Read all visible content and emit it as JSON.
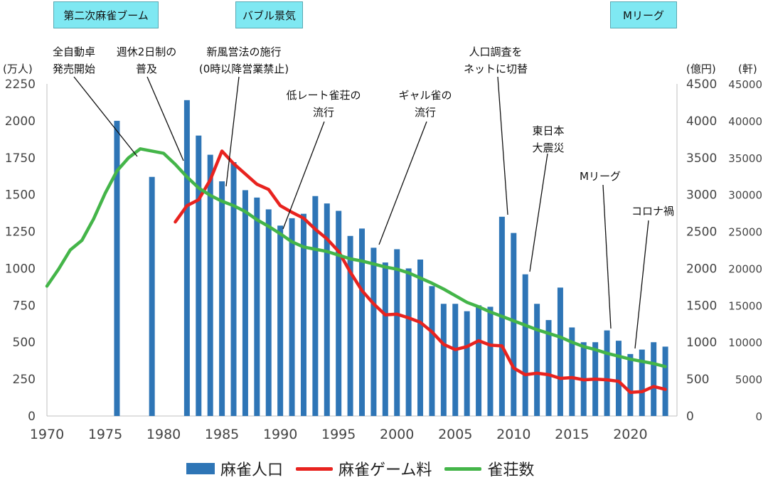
{
  "eras": [
    {
      "label": "第二次麻雀ブーム"
    },
    {
      "label": "バブル景気"
    },
    {
      "label": "Mリーグ"
    }
  ],
  "axis_units": {
    "left": "(万人)",
    "right1": "(億円)",
    "right2": "(軒)"
  },
  "colors": {
    "bars": "#2e75b6",
    "game_fee": "#e8231f",
    "parlors": "#44b549",
    "era_box": "#7fe8f2"
  },
  "chart_data": {
    "type": "bar+line",
    "x_ticks": [
      1970,
      1975,
      1980,
      1985,
      1990,
      1995,
      2000,
      2005,
      2010,
      2015,
      2020
    ],
    "y_left": {
      "unit": "(万人)",
      "ticks": [
        0,
        250,
        500,
        750,
        1000,
        1250,
        1500,
        1750,
        2000,
        2250
      ],
      "ylim": [
        0,
        2250
      ]
    },
    "y_right1": {
      "unit": "(億円)",
      "ticks": [
        0,
        500,
        1000,
        1500,
        2000,
        2500,
        3000,
        3500,
        4000,
        4500
      ],
      "ylim": [
        0,
        4500
      ]
    },
    "y_right2": {
      "unit": "(軒)",
      "ticks": [
        0,
        5000,
        10000,
        15000,
        20000,
        25000,
        30000,
        35000,
        40000,
        45000
      ],
      "ylim": [
        0,
        45000
      ]
    },
    "series": [
      {
        "name": "麻雀人口",
        "kind": "bar",
        "axis": "y_left",
        "x": [
          1976,
          1979,
          1982,
          1983,
          1984,
          1985,
          1986,
          1987,
          1988,
          1989,
          1990,
          1991,
          1992,
          1993,
          1994,
          1995,
          1996,
          1997,
          1998,
          1999,
          2000,
          2001,
          2002,
          2003,
          2004,
          2005,
          2006,
          2007,
          2008,
          2009,
          2010,
          2011,
          2012,
          2013,
          2014,
          2015,
          2016,
          2017,
          2018,
          2019,
          2020,
          2021,
          2022,
          2023
        ],
        "values": [
          2000,
          1620,
          2140,
          1900,
          1770,
          1590,
          1720,
          1530,
          1480,
          1400,
          1290,
          1340,
          1370,
          1490,
          1440,
          1390,
          1220,
          1270,
          1140,
          1040,
          1130,
          1000,
          1060,
          880,
          760,
          760,
          710,
          750,
          740,
          1350,
          1240,
          960,
          760,
          650,
          870,
          600,
          500,
          500,
          580,
          510,
          420,
          450,
          500,
          470
        ]
      },
      {
        "name": "麻雀ゲーム料",
        "kind": "line",
        "axis": "y_right1",
        "x": [
          1981,
          1982,
          1983,
          1984,
          1985,
          1986,
          1987,
          1988,
          1989,
          1990,
          1991,
          1992,
          1993,
          1994,
          1995,
          1996,
          1997,
          1998,
          1999,
          2000,
          2001,
          2002,
          2003,
          2004,
          2005,
          2006,
          2007,
          2008,
          2009,
          2010,
          2011,
          2012,
          2013,
          2014,
          2015,
          2016,
          2017,
          2018,
          2019,
          2020,
          2021,
          2022,
          2023
        ],
        "values": [
          2630,
          2850,
          2930,
          3200,
          3590,
          3420,
          3280,
          3140,
          3070,
          2850,
          2760,
          2680,
          2530,
          2400,
          2230,
          1950,
          1700,
          1520,
          1370,
          1380,
          1330,
          1270,
          1140,
          970,
          900,
          940,
          1020,
          960,
          950,
          650,
          560,
          580,
          560,
          510,
          520,
          490,
          500,
          490,
          470,
          320,
          330,
          400,
          360
        ]
      },
      {
        "name": "雀荘数",
        "kind": "line",
        "axis": "y_right2",
        "x": [
          1970,
          1971,
          1972,
          1973,
          1974,
          1975,
          1976,
          1977,
          1978,
          1979,
          1980,
          1981,
          1982,
          1983,
          1984,
          1985,
          1986,
          1987,
          1988,
          1989,
          1990,
          1991,
          1992,
          1993,
          1994,
          1995,
          1996,
          1997,
          1998,
          1999,
          2000,
          2001,
          2002,
          2003,
          2004,
          2005,
          2006,
          2007,
          2008,
          2009,
          2010,
          2011,
          2012,
          2013,
          2014,
          2015,
          2016,
          2017,
          2018,
          2019,
          2020,
          2021,
          2022,
          2023
        ],
        "values": [
          17600,
          19900,
          22500,
          23800,
          26700,
          30200,
          33200,
          35000,
          36200,
          35900,
          35600,
          34100,
          32400,
          30900,
          29900,
          29100,
          28500,
          27700,
          26600,
          25700,
          24700,
          23600,
          22900,
          22600,
          22300,
          21800,
          21300,
          21000,
          20600,
          20200,
          19900,
          19400,
          18700,
          18000,
          17200,
          16300,
          15400,
          14800,
          14100,
          13500,
          12900,
          12300,
          11700,
          11200,
          10700,
          10000,
          9400,
          9000,
          8500,
          8100,
          7700,
          7400,
          7100,
          6700
        ]
      }
    ],
    "annotations": [
      {
        "lines": [
          "全自動卓",
          "発売開始"
        ],
        "year": 1976
      },
      {
        "lines": [
          "週休2日制の",
          "普及"
        ],
        "year": 1980
      },
      {
        "lines": [
          "新風営法の施行",
          "(0時以降営業禁止)"
        ],
        "year": 1985
      },
      {
        "lines": [
          "低レート雀荘の",
          "流行"
        ],
        "year": 1990
      },
      {
        "lines": [
          "ギャル雀の",
          "流行"
        ],
        "year": 1998
      },
      {
        "lines": [
          "人口調査を",
          "ネットに切替"
        ],
        "year": 2009
      },
      {
        "lines": [
          "東日本",
          "大震災"
        ],
        "year": 2011
      },
      {
        "lines": [
          "Mリーグ"
        ],
        "year": 2018
      },
      {
        "lines": [
          "コロナ禍"
        ],
        "year": 2020
      }
    ],
    "legend": [
      "麻雀人口",
      "麻雀ゲーム料",
      "雀荘数"
    ],
    "legend_position": "bottom-center",
    "grid": false
  }
}
